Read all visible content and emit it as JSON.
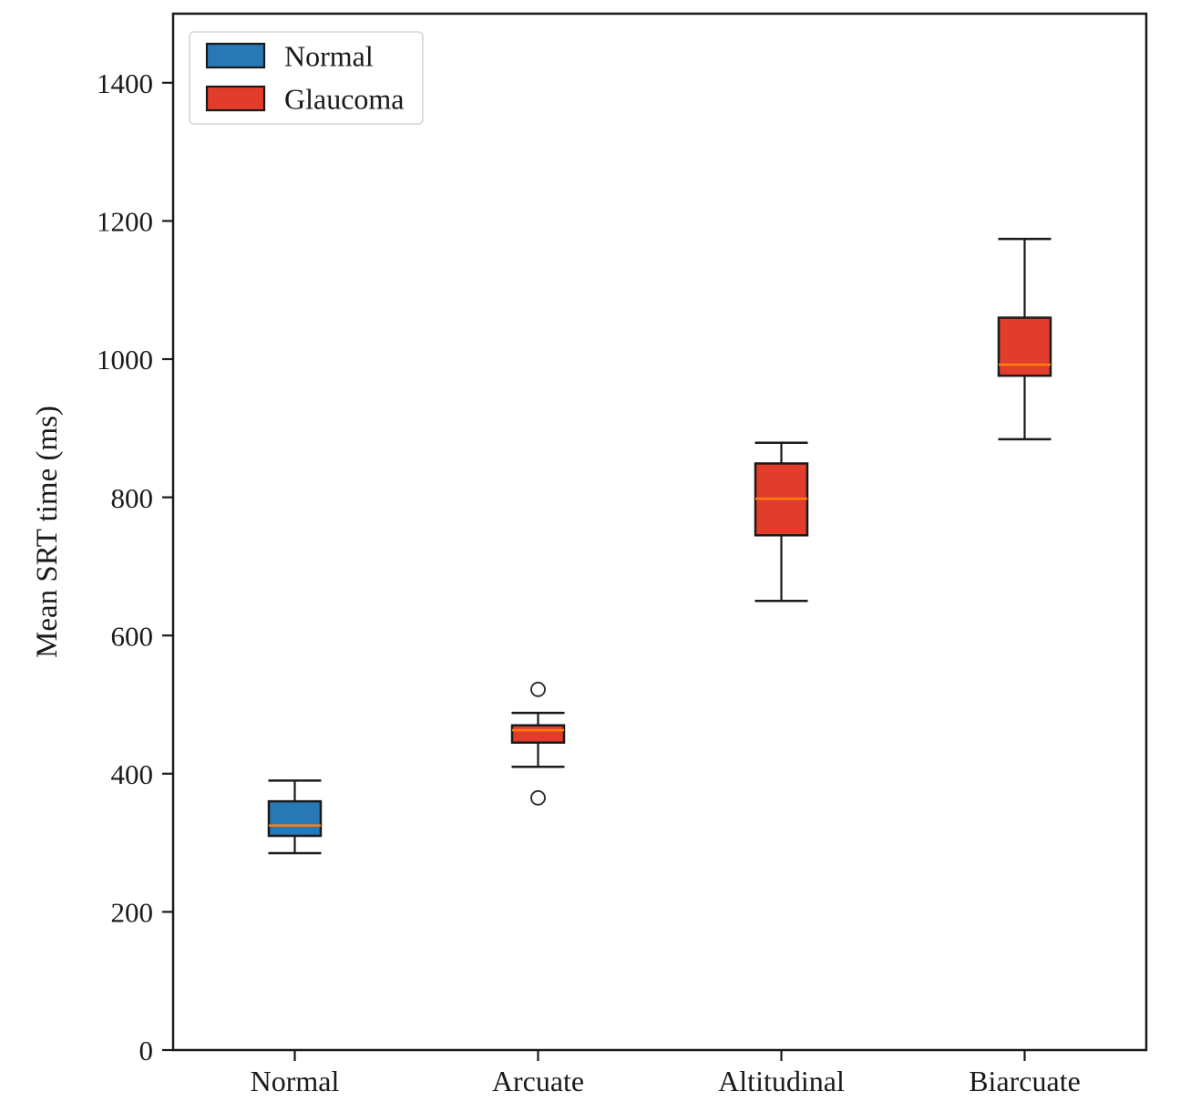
{
  "chart_data": {
    "type": "boxplot",
    "title": "",
    "xlabel": "",
    "ylabel": "Mean SRT time (ms)",
    "categories": [
      "Normal",
      "Arcuate",
      "Altitudinal",
      "Biarcuate"
    ],
    "ylim": [
      0,
      1500
    ],
    "yticks": [
      0,
      200,
      400,
      600,
      800,
      1000,
      1200,
      1400
    ],
    "grid": false,
    "legend_position": "upper-left",
    "legend": [
      {
        "label": "Normal",
        "color": "#2878b5"
      },
      {
        "label": "Glaucoma",
        "color": "#e13c2c"
      }
    ],
    "style_colors": {
      "median": "#ff7f0e",
      "box_edge": "#1a1a1a",
      "whisker": "#1a1a1a",
      "flier_edge": "#2b2b2b",
      "axis": "#1a1a1a"
    },
    "boxes": [
      {
        "category": "Normal",
        "group": "Normal",
        "whislo": 285,
        "q1": 310,
        "med": 325,
        "q3": 360,
        "whishi": 390,
        "fliers": []
      },
      {
        "category": "Arcuate",
        "group": "Glaucoma",
        "whislo": 410,
        "q1": 445,
        "med": 463,
        "q3": 470,
        "whishi": 488,
        "fliers": [
          522,
          365
        ]
      },
      {
        "category": "Altitudinal",
        "group": "Glaucoma",
        "whislo": 650,
        "q1": 745,
        "med": 798,
        "q3": 849,
        "whishi": 879,
        "fliers": []
      },
      {
        "category": "Biarcuate",
        "group": "Glaucoma",
        "whislo": 884,
        "q1": 976,
        "med": 992,
        "q3": 1060,
        "whishi": 1174,
        "fliers": []
      }
    ]
  }
}
